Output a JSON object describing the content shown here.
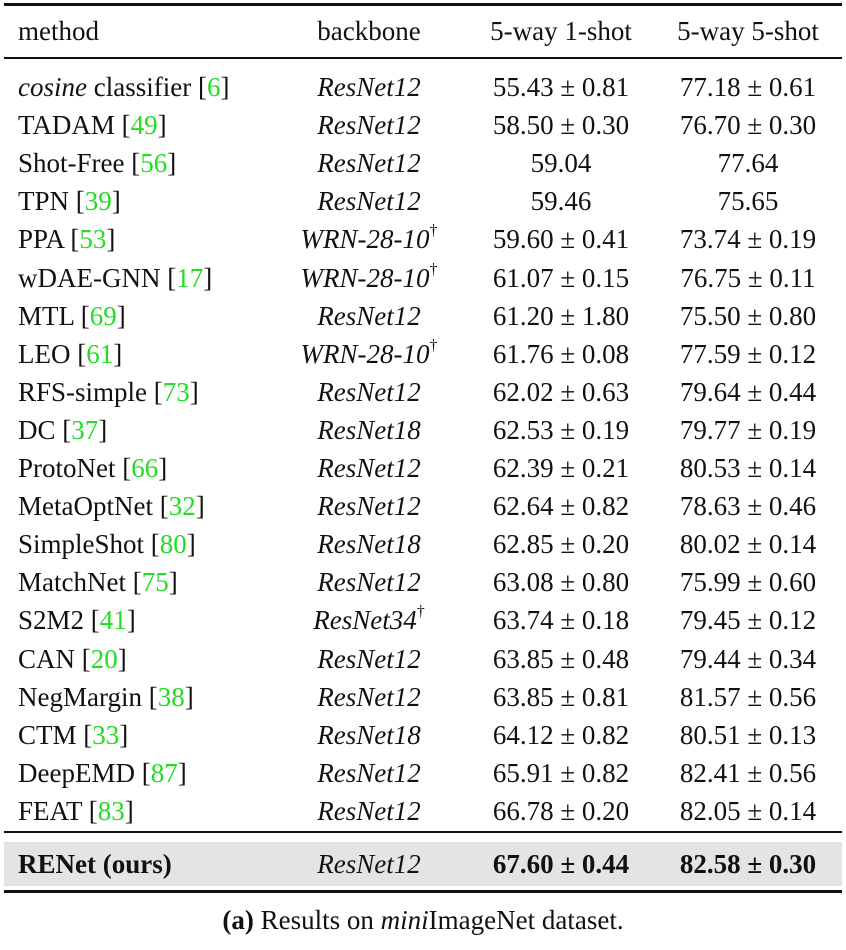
{
  "table": {
    "headers": {
      "method": "method",
      "backbone": "backbone",
      "one_shot": "5-way 1-shot",
      "five_shot": "5-way 5-shot"
    },
    "rows": [
      {
        "method_italic": "cosine",
        "method": " classifier",
        "cite": "6",
        "backbone": "ResNet12",
        "dagger": "",
        "one_shot": "55.43 ± 0.81",
        "five_shot": "77.18 ± 0.61"
      },
      {
        "method_italic": "",
        "method": "TADAM",
        "cite": "49",
        "backbone": "ResNet12",
        "dagger": "",
        "one_shot": "58.50 ± 0.30",
        "five_shot": "76.70 ± 0.30"
      },
      {
        "method_italic": "",
        "method": "Shot-Free",
        "cite": "56",
        "backbone": "ResNet12",
        "dagger": "",
        "one_shot": "59.04",
        "five_shot": "77.64"
      },
      {
        "method_italic": "",
        "method": "TPN",
        "cite": "39",
        "backbone": "ResNet12",
        "dagger": "",
        "one_shot": "59.46",
        "five_shot": "75.65"
      },
      {
        "method_italic": "",
        "method": "PPA",
        "cite": "53",
        "backbone": "WRN-28-10",
        "dagger": "†",
        "one_shot": "59.60 ± 0.41",
        "five_shot": "73.74 ± 0.19"
      },
      {
        "method_italic": "",
        "method": "wDAE-GNN",
        "cite": "17",
        "backbone": "WRN-28-10",
        "dagger": "†",
        "one_shot": "61.07 ± 0.15",
        "five_shot": "76.75 ± 0.11"
      },
      {
        "method_italic": "",
        "method": "MTL",
        "cite": "69",
        "backbone": "ResNet12",
        "dagger": "",
        "one_shot": "61.20 ± 1.80",
        "five_shot": "75.50 ± 0.80"
      },
      {
        "method_italic": "",
        "method": "LEO",
        "cite": "61",
        "backbone": "WRN-28-10",
        "dagger": "†",
        "one_shot": "61.76 ± 0.08",
        "five_shot": "77.59 ± 0.12"
      },
      {
        "method_italic": "",
        "method": "RFS-simple",
        "cite": "73",
        "backbone": "ResNet12",
        "dagger": "",
        "one_shot": "62.02 ± 0.63",
        "five_shot": "79.64 ± 0.44"
      },
      {
        "method_italic": "",
        "method": "DC",
        "cite": "37",
        "backbone": "ResNet18",
        "dagger": "",
        "one_shot": "62.53 ± 0.19",
        "five_shot": "79.77 ± 0.19"
      },
      {
        "method_italic": "",
        "method": "ProtoNet",
        "cite": "66",
        "backbone": "ResNet12",
        "dagger": "",
        "one_shot": "62.39 ± 0.21",
        "five_shot": "80.53 ± 0.14"
      },
      {
        "method_italic": "",
        "method": "MetaOptNet",
        "cite": "32",
        "backbone": "ResNet12",
        "dagger": "",
        "one_shot": "62.64 ± 0.82",
        "five_shot": "78.63 ± 0.46"
      },
      {
        "method_italic": "",
        "method": "SimpleShot",
        "cite": "80",
        "backbone": "ResNet18",
        "dagger": "",
        "one_shot": "62.85 ± 0.20",
        "five_shot": "80.02 ± 0.14"
      },
      {
        "method_italic": "",
        "method": "MatchNet",
        "cite": "75",
        "backbone": "ResNet12",
        "dagger": "",
        "one_shot": "63.08 ± 0.80",
        "five_shot": "75.99 ± 0.60"
      },
      {
        "method_italic": "",
        "method": "S2M2",
        "cite": "41",
        "backbone": "ResNet34",
        "dagger": "†",
        "one_shot": "63.74 ± 0.18",
        "five_shot": "79.45 ± 0.12"
      },
      {
        "method_italic": "",
        "method": "CAN",
        "cite": "20",
        "backbone": "ResNet12",
        "dagger": "",
        "one_shot": "63.85 ± 0.48",
        "five_shot": "79.44 ± 0.34"
      },
      {
        "method_italic": "",
        "method": "NegMargin",
        "cite": "38",
        "backbone": "ResNet12",
        "dagger": "",
        "one_shot": "63.85 ± 0.81",
        "five_shot": "81.57 ± 0.56"
      },
      {
        "method_italic": "",
        "method": "CTM",
        "cite": "33",
        "backbone": "ResNet18",
        "dagger": "",
        "one_shot": "64.12 ± 0.82",
        "five_shot": "80.51 ± 0.13"
      },
      {
        "method_italic": "",
        "method": "DeepEMD",
        "cite": "87",
        "backbone": "ResNet12",
        "dagger": "",
        "one_shot": "65.91 ± 0.82",
        "five_shot": "82.41 ± 0.56"
      },
      {
        "method_italic": "",
        "method": "FEAT",
        "cite": "83",
        "backbone": "ResNet12",
        "dagger": "",
        "one_shot": "66.78 ± 0.20",
        "five_shot": "82.05 ± 0.14"
      }
    ],
    "ours": {
      "method": "RENet (ours)",
      "backbone": "ResNet12",
      "one_shot": "67.60 ± 0.44",
      "five_shot": "82.58 ± 0.30"
    }
  },
  "caption": {
    "label": "(a)",
    "prefix": " Results on ",
    "italic": "mini",
    "suffix": "ImageNet dataset."
  },
  "colors": {
    "citation": "#22dd22",
    "highlight_row": "#e4e4e4",
    "rule": "#111111"
  }
}
